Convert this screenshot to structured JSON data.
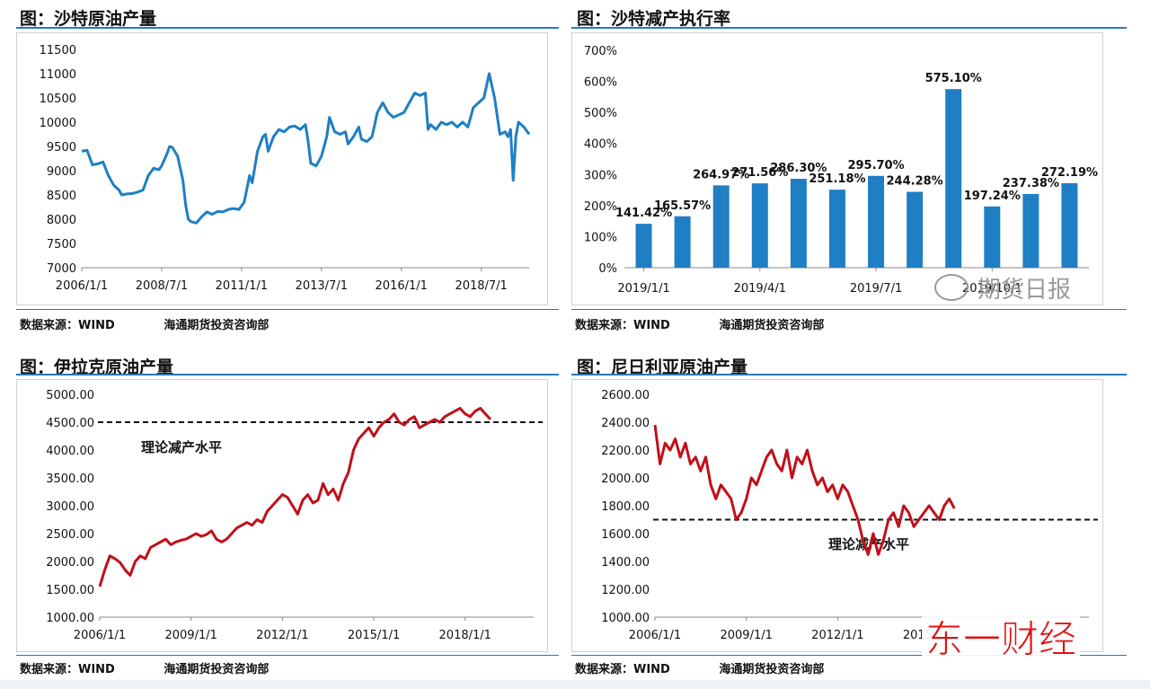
{
  "colors": {
    "blue": "#1f7fc4",
    "red": "#c0101a",
    "rule": "#2b78b8",
    "grid": "#cccccc"
  },
  "panels": {
    "saudi_prod": {
      "title": "图：沙特原油产量",
      "source_left": "数据来源：WIND",
      "source_right": "海通期货投资咨询部"
    },
    "saudi_exec": {
      "title": "图：沙特减产执行率",
      "source_left": "数据来源：WIND",
      "source_right": "海通期货投资咨询部"
    },
    "iraq_prod": {
      "title": "图：伊拉克原油产量",
      "source_left": "数据来源：WIND",
      "source_right": "海通期货投资咨询部"
    },
    "nigeria_prod": {
      "title": "图：尼日利亚原油产量",
      "source_left": "数据来源：WIND",
      "source_right": "海通期货投资咨询部"
    }
  },
  "watermark": {
    "text": "期货日报",
    "icon": "wechat-icon"
  },
  "brand": {
    "text": "东一财经"
  },
  "chart_data": [
    {
      "id": "saudi_prod",
      "type": "line",
      "title": "",
      "series_color": "#1f7fc4",
      "ylim": [
        7000,
        11500
      ],
      "yticks": [
        "7000",
        "7500",
        "8000",
        "8500",
        "9000",
        "9500",
        "10000",
        "10500",
        "11000",
        "11500"
      ],
      "xtick_labels": [
        "2006/1/1",
        "2008/7/1",
        "2011/1/1",
        "2013/7/1",
        "2016/1/1",
        "2018/7/1"
      ],
      "xtick_pos": [
        0,
        30,
        60,
        90,
        120,
        150
      ],
      "x_count": 169,
      "points": [
        [
          0,
          9400
        ],
        [
          2,
          9420
        ],
        [
          4,
          9120
        ],
        [
          6,
          9140
        ],
        [
          8,
          9180
        ],
        [
          10,
          8900
        ],
        [
          12,
          8700
        ],
        [
          14,
          8600
        ],
        [
          15,
          8500
        ],
        [
          17,
          8520
        ],
        [
          19,
          8530
        ],
        [
          21,
          8560
        ],
        [
          23,
          8600
        ],
        [
          25,
          8900
        ],
        [
          27,
          9050
        ],
        [
          29,
          9020
        ],
        [
          30,
          9100
        ],
        [
          32,
          9350
        ],
        [
          33,
          9500
        ],
        [
          34,
          9480
        ],
        [
          36,
          9300
        ],
        [
          38,
          8800
        ],
        [
          39,
          8300
        ],
        [
          40,
          8000
        ],
        [
          41,
          7950
        ],
        [
          43,
          7920
        ],
        [
          45,
          8050
        ],
        [
          47,
          8150
        ],
        [
          49,
          8100
        ],
        [
          51,
          8160
        ],
        [
          53,
          8150
        ],
        [
          55,
          8200
        ],
        [
          57,
          8220
        ],
        [
          59,
          8200
        ],
        [
          61,
          8350
        ],
        [
          63,
          8900
        ],
        [
          64,
          8750
        ],
        [
          66,
          9400
        ],
        [
          68,
          9700
        ],
        [
          69,
          9750
        ],
        [
          70,
          9400
        ],
        [
          72,
          9700
        ],
        [
          74,
          9850
        ],
        [
          76,
          9800
        ],
        [
          78,
          9900
        ],
        [
          80,
          9920
        ],
        [
          82,
          9850
        ],
        [
          84,
          9950
        ],
        [
          85,
          9600
        ],
        [
          86,
          9150
        ],
        [
          88,
          9100
        ],
        [
          90,
          9300
        ],
        [
          92,
          9700
        ],
        [
          93,
          10100
        ],
        [
          95,
          9800
        ],
        [
          97,
          9750
        ],
        [
          99,
          9800
        ],
        [
          100,
          9550
        ],
        [
          102,
          9700
        ],
        [
          104,
          9900
        ],
        [
          105,
          9650
        ],
        [
          107,
          9600
        ],
        [
          109,
          9700
        ],
        [
          111,
          10200
        ],
        [
          113,
          10400
        ],
        [
          115,
          10200
        ],
        [
          117,
          10100
        ],
        [
          119,
          10150
        ],
        [
          121,
          10200
        ],
        [
          123,
          10400
        ],
        [
          125,
          10600
        ],
        [
          127,
          10550
        ],
        [
          129,
          10600
        ],
        [
          130,
          9850
        ],
        [
          131,
          9950
        ],
        [
          133,
          9850
        ],
        [
          135,
          10000
        ],
        [
          137,
          9950
        ],
        [
          139,
          10000
        ],
        [
          141,
          9900
        ],
        [
          143,
          10000
        ],
        [
          145,
          9900
        ],
        [
          147,
          10300
        ],
        [
          149,
          10400
        ],
        [
          151,
          10500
        ],
        [
          153,
          11000
        ],
        [
          155,
          10500
        ],
        [
          157,
          9750
        ],
        [
          159,
          9800
        ],
        [
          160,
          9700
        ],
        [
          161,
          9850
        ],
        [
          162,
          8800
        ],
        [
          163,
          9700
        ],
        [
          164,
          10000
        ],
        [
          166,
          9900
        ],
        [
          168,
          9750
        ]
      ]
    },
    {
      "id": "saudi_exec",
      "type": "bar",
      "title": "",
      "series_color": "#1f7fc4",
      "ylim": [
        0,
        700
      ],
      "yticks": [
        "0%",
        "100%",
        "200%",
        "300%",
        "400%",
        "500%",
        "600%",
        "700%"
      ],
      "values": [
        141.42,
        165.57,
        264.97,
        271.56,
        286.3,
        251.18,
        295.7,
        244.28,
        575.1,
        197.24,
        237.38,
        272.19
      ],
      "labels": [
        "141.42%",
        "165.57%",
        "264.97%",
        "271.56%",
        "286.30%",
        "251.18%",
        "295.70%",
        "244.28%",
        "575.10%",
        "197.24%",
        "237.38%",
        "272.19%"
      ],
      "xtick_labels": [
        "2019/1/1",
        "2019/4/1",
        "2019/7/1",
        "2019/10/1"
      ],
      "xtick_index": [
        0,
        3,
        6,
        9
      ]
    },
    {
      "id": "iraq_prod",
      "type": "line",
      "title": "",
      "series_color": "#c0101a",
      "ylim": [
        1000,
        5000
      ],
      "yticks": [
        "1000.00",
        "1500.00",
        "2000.00",
        "2500.00",
        "3000.00",
        "3500.00",
        "4000.00",
        "4500.00",
        "5000.00"
      ],
      "xtick_labels": [
        "2006/1/1",
        "2009/1/1",
        "2012/1/1",
        "2015/1/1",
        "2018/1/1"
      ],
      "xtick_pos": [
        0,
        36,
        72,
        108,
        144
      ],
      "x_count": 172,
      "reference": {
        "value": 4500,
        "label": "理论减产水平"
      },
      "points": [
        [
          0,
          1550
        ],
        [
          2,
          1850
        ],
        [
          4,
          2100
        ],
        [
          6,
          2050
        ],
        [
          8,
          1980
        ],
        [
          10,
          1850
        ],
        [
          12,
          1750
        ],
        [
          14,
          2000
        ],
        [
          16,
          2100
        ],
        [
          18,
          2050
        ],
        [
          20,
          2250
        ],
        [
          22,
          2300
        ],
        [
          24,
          2350
        ],
        [
          26,
          2400
        ],
        [
          28,
          2300
        ],
        [
          30,
          2350
        ],
        [
          32,
          2380
        ],
        [
          34,
          2400
        ],
        [
          36,
          2450
        ],
        [
          38,
          2500
        ],
        [
          40,
          2450
        ],
        [
          42,
          2480
        ],
        [
          44,
          2550
        ],
        [
          46,
          2400
        ],
        [
          48,
          2350
        ],
        [
          50,
          2400
        ],
        [
          52,
          2500
        ],
        [
          54,
          2600
        ],
        [
          56,
          2650
        ],
        [
          58,
          2700
        ],
        [
          60,
          2650
        ],
        [
          62,
          2750
        ],
        [
          64,
          2700
        ],
        [
          66,
          2900
        ],
        [
          68,
          3000
        ],
        [
          70,
          3100
        ],
        [
          72,
          3200
        ],
        [
          74,
          3150
        ],
        [
          76,
          3000
        ],
        [
          78,
          2850
        ],
        [
          80,
          3100
        ],
        [
          82,
          3200
        ],
        [
          84,
          3050
        ],
        [
          86,
          3100
        ],
        [
          88,
          3400
        ],
        [
          90,
          3200
        ],
        [
          92,
          3300
        ],
        [
          94,
          3100
        ],
        [
          96,
          3400
        ],
        [
          98,
          3600
        ],
        [
          100,
          4000
        ],
        [
          102,
          4200
        ],
        [
          104,
          4300
        ],
        [
          106,
          4400
        ],
        [
          108,
          4250
        ],
        [
          110,
          4400
        ],
        [
          112,
          4500
        ],
        [
          114,
          4550
        ],
        [
          116,
          4650
        ],
        [
          118,
          4500
        ],
        [
          120,
          4450
        ],
        [
          122,
          4550
        ],
        [
          124,
          4600
        ],
        [
          126,
          4400
        ],
        [
          128,
          4450
        ],
        [
          130,
          4500
        ],
        [
          132,
          4550
        ],
        [
          134,
          4500
        ],
        [
          136,
          4600
        ],
        [
          138,
          4650
        ],
        [
          140,
          4700
        ],
        [
          142,
          4750
        ],
        [
          144,
          4650
        ],
        [
          146,
          4600
        ],
        [
          148,
          4700
        ],
        [
          150,
          4750
        ],
        [
          152,
          4650
        ],
        [
          154,
          4550
        ]
      ]
    },
    {
      "id": "nigeria_prod",
      "type": "line",
      "title": "",
      "series_color": "#c0101a",
      "ylim": [
        1000,
        2600
      ],
      "yticks": [
        "1000.00",
        "1200.00",
        "1400.00",
        "1600.00",
        "1800.00",
        "2000.00",
        "2200.00",
        "2400.00",
        "2600.00"
      ],
      "xtick_labels": [
        "2006/1/1",
        "2009/1/1",
        "2012/1/1",
        "2015/1/1"
      ],
      "xtick_pos": [
        0,
        36,
        72,
        108
      ],
      "x_count": 172,
      "reference": {
        "value": 1700,
        "label": "理论减产水平"
      },
      "points": [
        [
          0,
          2380
        ],
        [
          2,
          2100
        ],
        [
          4,
          2250
        ],
        [
          6,
          2200
        ],
        [
          8,
          2280
        ],
        [
          10,
          2150
        ],
        [
          12,
          2250
        ],
        [
          14,
          2100
        ],
        [
          16,
          2150
        ],
        [
          18,
          2050
        ],
        [
          20,
          2150
        ],
        [
          22,
          1950
        ],
        [
          24,
          1850
        ],
        [
          26,
          1950
        ],
        [
          28,
          1900
        ],
        [
          30,
          1850
        ],
        [
          32,
          1700
        ],
        [
          34,
          1750
        ],
        [
          36,
          1850
        ],
        [
          38,
          2000
        ],
        [
          40,
          1950
        ],
        [
          42,
          2050
        ],
        [
          44,
          2150
        ],
        [
          46,
          2200
        ],
        [
          48,
          2100
        ],
        [
          50,
          2050
        ],
        [
          52,
          2200
        ],
        [
          54,
          2000
        ],
        [
          56,
          2150
        ],
        [
          58,
          2100
        ],
        [
          60,
          2200
        ],
        [
          62,
          2050
        ],
        [
          64,
          1950
        ],
        [
          66,
          2000
        ],
        [
          68,
          1900
        ],
        [
          70,
          1950
        ],
        [
          72,
          1850
        ],
        [
          74,
          1950
        ],
        [
          76,
          1900
        ],
        [
          78,
          1800
        ],
        [
          80,
          1700
        ],
        [
          82,
          1550
        ],
        [
          84,
          1450
        ],
        [
          86,
          1600
        ],
        [
          88,
          1450
        ],
        [
          90,
          1550
        ],
        [
          92,
          1700
        ],
        [
          94,
          1750
        ],
        [
          96,
          1650
        ],
        [
          98,
          1800
        ],
        [
          100,
          1750
        ],
        [
          102,
          1650
        ],
        [
          104,
          1700
        ],
        [
          106,
          1750
        ],
        [
          108,
          1800
        ],
        [
          110,
          1750
        ],
        [
          112,
          1700
        ],
        [
          114,
          1800
        ],
        [
          116,
          1850
        ],
        [
          118,
          1780
        ]
      ]
    }
  ]
}
